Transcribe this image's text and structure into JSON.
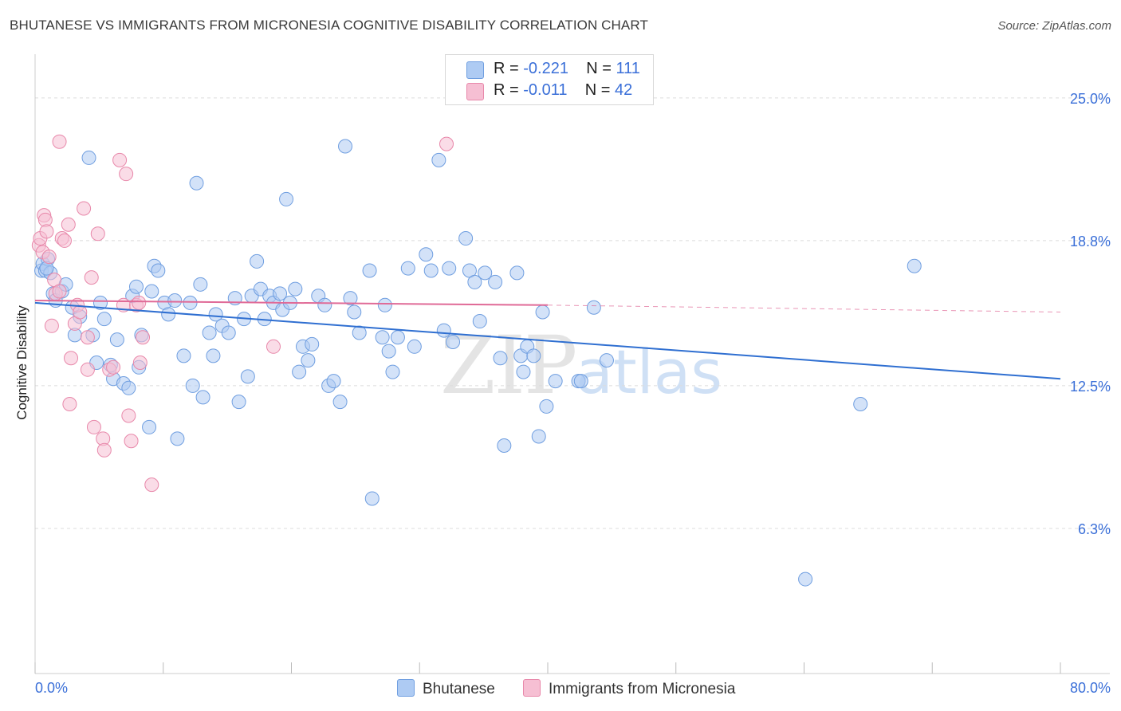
{
  "chart_data": {
    "type": "scatter",
    "title": "BHUTANESE VS IMMIGRANTS FROM MICRONESIA COGNITIVE DISABILITY CORRELATION CHART",
    "source": "Source: ZipAtlas.com",
    "xlabel": "",
    "ylabel": "Cognitive Disability",
    "xlim": [
      0,
      80
    ],
    "ylim": [
      0,
      26.5
    ],
    "x_tick_labels": {
      "left": "0.0%",
      "right": "80.0%"
    },
    "y_ticks": [
      {
        "value": 6.3,
        "label": "6.3%"
      },
      {
        "value": 12.5,
        "label": "12.5%"
      },
      {
        "value": 18.8,
        "label": "18.8%"
      },
      {
        "value": 25.0,
        "label": "25.0%"
      }
    ],
    "watermark": {
      "zip": "ZIP",
      "atlas": "atlas"
    },
    "legend": [
      {
        "r_label": "R = ",
        "r_value": "-0.221",
        "n_label": "N = ",
        "n_value": "111"
      },
      {
        "r_label": "R = ",
        "r_value": "-0.011",
        "n_label": "N = ",
        "n_value": "42"
      }
    ],
    "series": [
      {
        "name": "Bhutanese",
        "fill": "#aecbf3",
        "stroke": "#6f9ee0",
        "line_color": "#2f6fd1",
        "trend": {
          "x0": 0,
          "y0": 16.1,
          "x1": 80,
          "y1": 12.8
        },
        "points": [
          [
            0.5,
            17.5
          ],
          [
            0.6,
            17.8
          ],
          [
            0.8,
            17.5
          ],
          [
            1.0,
            18.0
          ],
          [
            1.2,
            17.4
          ],
          [
            1.4,
            16.5
          ],
          [
            1.6,
            16.2
          ],
          [
            2.1,
            16.6
          ],
          [
            2.4,
            16.9
          ],
          [
            2.9,
            15.9
          ],
          [
            3.1,
            14.7
          ],
          [
            3.5,
            15.5
          ],
          [
            4.2,
            22.4
          ],
          [
            4.5,
            14.7
          ],
          [
            4.8,
            13.5
          ],
          [
            5.1,
            16.1
          ],
          [
            5.4,
            15.4
          ],
          [
            5.9,
            13.4
          ],
          [
            6.1,
            12.8
          ],
          [
            6.4,
            14.5
          ],
          [
            6.9,
            12.6
          ],
          [
            7.3,
            12.4
          ],
          [
            7.6,
            16.4
          ],
          [
            7.9,
            16.8
          ],
          [
            8.1,
            13.3
          ],
          [
            8.3,
            14.7
          ],
          [
            8.9,
            10.7
          ],
          [
            9.1,
            16.6
          ],
          [
            9.3,
            17.7
          ],
          [
            9.6,
            17.5
          ],
          [
            10.1,
            16.1
          ],
          [
            10.4,
            15.6
          ],
          [
            10.9,
            16.2
          ],
          [
            11.1,
            10.2
          ],
          [
            11.6,
            13.8
          ],
          [
            12.1,
            16.1
          ],
          [
            12.3,
            12.5
          ],
          [
            12.6,
            21.3
          ],
          [
            12.9,
            16.9
          ],
          [
            13.1,
            12.0
          ],
          [
            13.6,
            14.8
          ],
          [
            13.9,
            13.8
          ],
          [
            14.1,
            15.6
          ],
          [
            14.6,
            15.1
          ],
          [
            15.1,
            14.8
          ],
          [
            15.6,
            16.3
          ],
          [
            15.9,
            11.8
          ],
          [
            16.3,
            15.4
          ],
          [
            16.6,
            12.9
          ],
          [
            16.9,
            16.4
          ],
          [
            17.3,
            17.9
          ],
          [
            17.6,
            16.7
          ],
          [
            17.9,
            15.4
          ],
          [
            18.3,
            16.4
          ],
          [
            18.6,
            16.1
          ],
          [
            19.1,
            16.5
          ],
          [
            19.3,
            15.8
          ],
          [
            19.6,
            20.6
          ],
          [
            19.9,
            16.1
          ],
          [
            20.3,
            16.7
          ],
          [
            20.6,
            13.1
          ],
          [
            20.9,
            14.2
          ],
          [
            21.3,
            13.6
          ],
          [
            21.6,
            14.3
          ],
          [
            22.1,
            16.4
          ],
          [
            22.6,
            16.0
          ],
          [
            22.9,
            12.5
          ],
          [
            23.3,
            12.7
          ],
          [
            23.8,
            11.8
          ],
          [
            24.2,
            22.9
          ],
          [
            24.6,
            16.3
          ],
          [
            24.9,
            15.7
          ],
          [
            25.3,
            14.8
          ],
          [
            26.1,
            17.5
          ],
          [
            26.3,
            7.6
          ],
          [
            27.1,
            14.6
          ],
          [
            27.3,
            16.0
          ],
          [
            27.6,
            14.0
          ],
          [
            27.9,
            13.1
          ],
          [
            28.3,
            14.6
          ],
          [
            29.1,
            17.6
          ],
          [
            29.6,
            14.2
          ],
          [
            30.5,
            18.2
          ],
          [
            30.9,
            17.5
          ],
          [
            31.5,
            22.3
          ],
          [
            31.9,
            14.9
          ],
          [
            32.3,
            17.6
          ],
          [
            32.6,
            14.4
          ],
          [
            33.6,
            18.9
          ],
          [
            33.9,
            17.5
          ],
          [
            34.3,
            17.0
          ],
          [
            34.7,
            15.3
          ],
          [
            35.1,
            17.4
          ],
          [
            35.9,
            17.0
          ],
          [
            36.3,
            13.7
          ],
          [
            36.6,
            9.9
          ],
          [
            37.6,
            17.4
          ],
          [
            37.9,
            13.8
          ],
          [
            38.1,
            13.1
          ],
          [
            38.4,
            14.2
          ],
          [
            38.9,
            13.8
          ],
          [
            39.3,
            10.3
          ],
          [
            39.6,
            15.7
          ],
          [
            39.9,
            11.6
          ],
          [
            40.6,
            12.7
          ],
          [
            42.4,
            12.7
          ],
          [
            42.6,
            12.7
          ],
          [
            43.6,
            15.9
          ],
          [
            44.6,
            13.6
          ],
          [
            60.1,
            4.1
          ],
          [
            64.4,
            11.7
          ],
          [
            68.6,
            17.7
          ],
          [
            0.9,
            17.6
          ]
        ]
      },
      {
        "name": "Immigrants from Micronesia",
        "fill": "#f6bfd3",
        "stroke": "#e888aa",
        "line_color": "#e06a97",
        "trend": {
          "x0": 0,
          "y0": 16.2,
          "x1": 40,
          "y1": 16.0
        },
        "trend_ext": {
          "x0": 40,
          "y0": 16.0,
          "x1": 80,
          "y1": 15.7
        },
        "points": [
          [
            0.3,
            18.6
          ],
          [
            0.4,
            18.9
          ],
          [
            0.6,
            18.3
          ],
          [
            0.7,
            19.9
          ],
          [
            0.8,
            19.7
          ],
          [
            1.1,
            18.1
          ],
          [
            1.3,
            15.1
          ],
          [
            1.5,
            17.1
          ],
          [
            1.6,
            16.5
          ],
          [
            1.9,
            23.1
          ],
          [
            2.1,
            18.9
          ],
          [
            2.3,
            18.8
          ],
          [
            2.6,
            19.5
          ],
          [
            2.7,
            11.7
          ],
          [
            2.8,
            13.7
          ],
          [
            3.1,
            15.2
          ],
          [
            3.3,
            16.0
          ],
          [
            3.5,
            15.7
          ],
          [
            3.8,
            20.2
          ],
          [
            4.1,
            14.6
          ],
          [
            4.1,
            13.2
          ],
          [
            4.4,
            17.2
          ],
          [
            4.6,
            10.7
          ],
          [
            4.9,
            19.1
          ],
          [
            5.3,
            10.2
          ],
          [
            5.4,
            9.7
          ],
          [
            5.8,
            13.2
          ],
          [
            6.1,
            13.3
          ],
          [
            6.6,
            22.3
          ],
          [
            6.9,
            16.0
          ],
          [
            7.1,
            21.7
          ],
          [
            7.3,
            11.2
          ],
          [
            7.5,
            10.1
          ],
          [
            7.9,
            16.0
          ],
          [
            8.1,
            16.1
          ],
          [
            8.2,
            13.5
          ],
          [
            8.4,
            14.6
          ],
          [
            9.1,
            8.2
          ],
          [
            18.6,
            14.2
          ],
          [
            32.1,
            23.0
          ],
          [
            1.9,
            16.6
          ],
          [
            0.9,
            19.2
          ]
        ]
      }
    ]
  }
}
